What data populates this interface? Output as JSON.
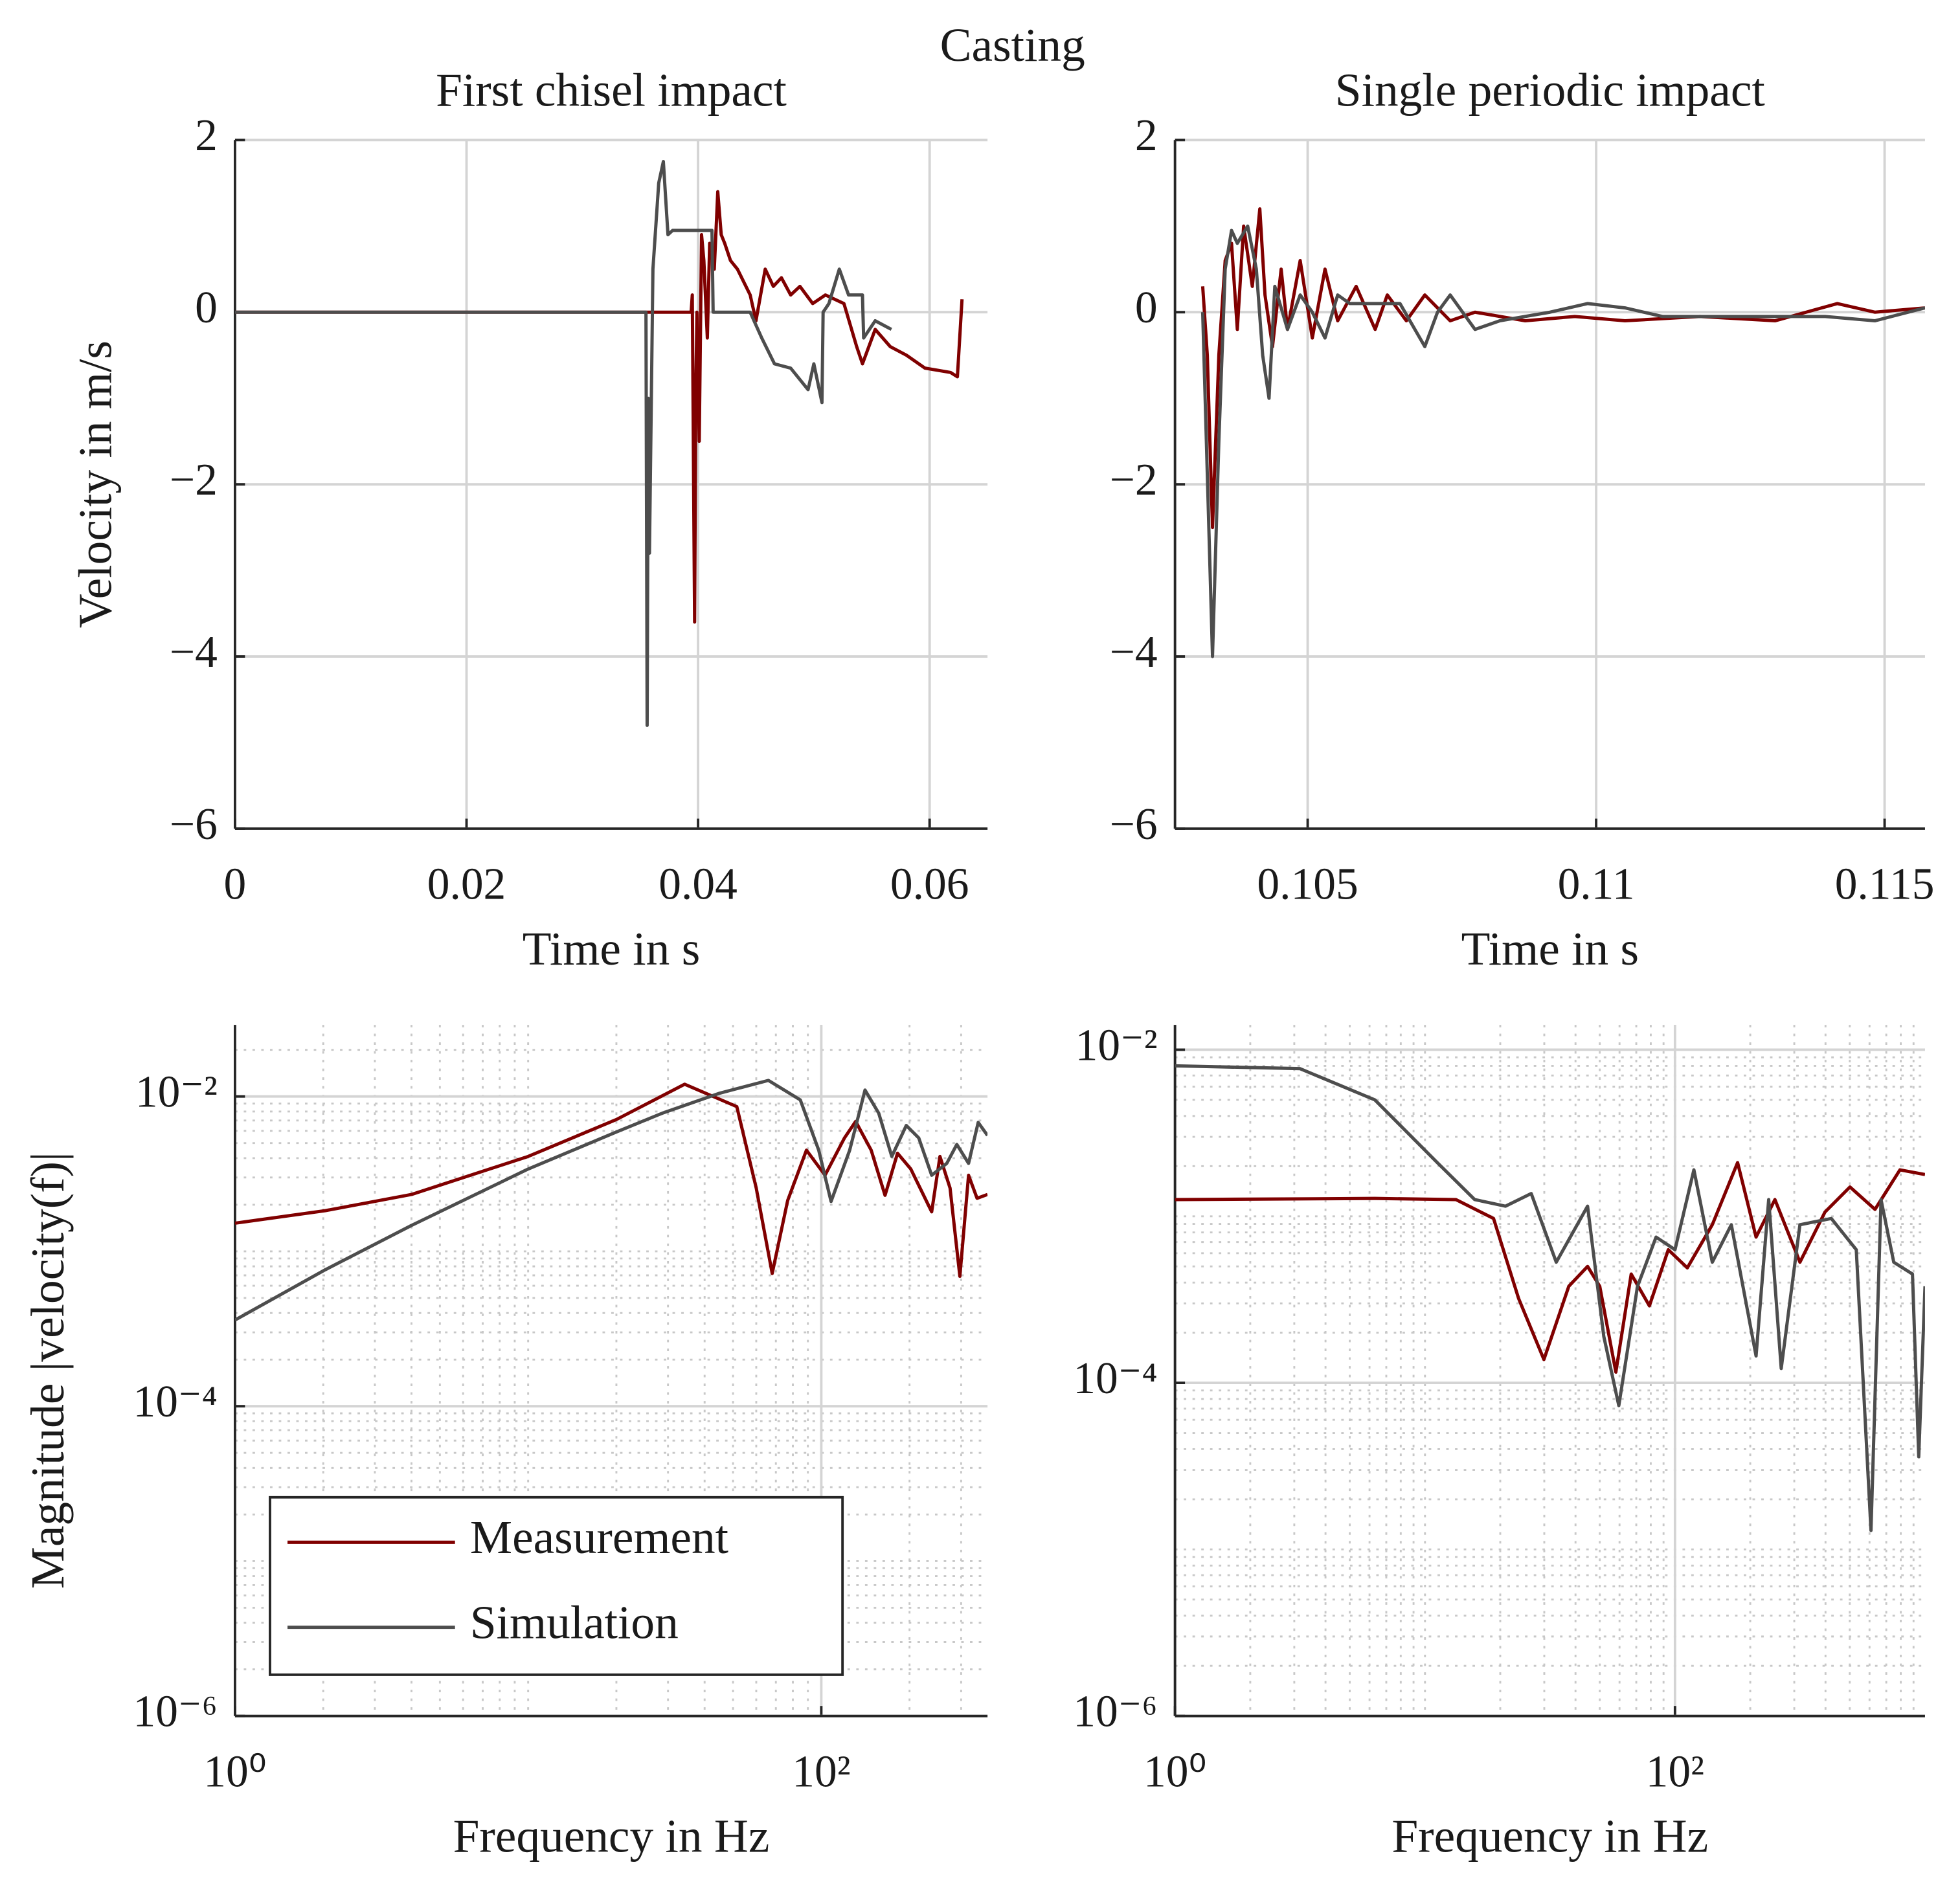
{
  "title": "Casting",
  "chart_data": [
    {
      "type": "line",
      "title": "First chisel impact",
      "xlabel": "Time in s",
      "ylabel": "Velocity in m/s",
      "xlim": [
        0,
        0.065
      ],
      "ylim": [
        -6,
        2
      ],
      "xticks": [
        0,
        0.02,
        0.04,
        0.06
      ],
      "yticks": [
        {
          "value": -6,
          "label": "−6"
        },
        {
          "value": -4,
          "label": "−4"
        },
        {
          "value": -2,
          "label": "−2"
        },
        0,
        2
      ],
      "grid": true,
      "series": [
        {
          "color": "#800000",
          "x": [
            0,
            0.0394,
            0.0395,
            0.0397,
            0.0398,
            0.0399,
            0.0401,
            0.0403,
            0.0405,
            0.0408,
            0.041,
            0.0414,
            0.0417,
            0.042,
            0.0423,
            0.0428,
            0.0434,
            0.0445,
            0.045,
            0.0458,
            0.0465,
            0.0472,
            0.048,
            0.0488,
            0.0499,
            0.051,
            0.0526,
            0.0537,
            0.0542,
            0.0553,
            0.0566,
            0.058,
            0.0596,
            0.0618,
            0.0624,
            0.0628
          ],
          "values": [
            0,
            0,
            0.2,
            -3.6,
            -1.0,
            0,
            -1.5,
            0.9,
            0.6,
            -0.3,
            0.8,
            0.5,
            1.4,
            0.9,
            0.8,
            0.6,
            0.5,
            0.2,
            -0.1,
            0.5,
            0.3,
            0.4,
            0.2,
            0.3,
            0.1,
            0.2,
            0.1,
            -0.4,
            -0.6,
            -0.2,
            -0.4,
            -0.5,
            -0.65,
            -0.7,
            -0.75,
            0.15
          ]
        },
        {
          "color": "#4d4d4d",
          "x": [
            0,
            0.0355,
            0.0356,
            0.0357,
            0.0358,
            0.0361,
            0.0366,
            0.037,
            0.0374,
            0.0378,
            0.0412,
            0.0413,
            0.0445,
            0.0455,
            0.0466,
            0.048,
            0.0495,
            0.05,
            0.0507,
            0.0508,
            0.0513,
            0.0522,
            0.053,
            0.0542,
            0.0543,
            0.0553,
            0.0567
          ],
          "values": [
            0,
            0,
            -4.8,
            -1.0,
            -2.8,
            0.5,
            1.5,
            1.75,
            0.9,
            0.95,
            0.95,
            0,
            0,
            -0.3,
            -0.6,
            -0.65,
            -0.9,
            -0.6,
            -1.05,
            0,
            0.1,
            0.5,
            0.2,
            0.2,
            -0.3,
            -0.1,
            -0.2
          ]
        }
      ]
    },
    {
      "type": "line",
      "title": "Single periodic impact",
      "xlabel": "Time in s",
      "xlim": [
        0.1027,
        0.1157
      ],
      "ylim": [
        -6,
        2
      ],
      "xticks": [
        0.105,
        0.11,
        0.115
      ],
      "yticks": [
        {
          "value": -6,
          "label": "−6"
        },
        {
          "value": -4,
          "label": "−4"
        },
        {
          "value": -2,
          "label": "−2"
        },
        0,
        2
      ],
      "grid": true,
      "series": [
        {
          "color": "#800000",
          "x": [
            0.10318,
            0.10326,
            0.10335,
            0.10346,
            0.10357,
            0.10368,
            0.10378,
            0.10389,
            0.10404,
            0.10417,
            0.10426,
            0.10439,
            0.10454,
            0.10465,
            0.10487,
            0.10508,
            0.1053,
            0.10552,
            0.10584,
            0.10617,
            0.10638,
            0.10671,
            0.10703,
            0.10747,
            0.1079,
            0.10877,
            0.10963,
            0.1105,
            0.1118,
            0.1131,
            0.11418,
            0.11483,
            0.1157
          ],
          "values": [
            0.3,
            -0.5,
            -2.5,
            -0.5,
            0.6,
            0.8,
            -0.2,
            1.0,
            0.3,
            1.2,
            0.2,
            -0.4,
            0.5,
            -0.2,
            0.6,
            -0.3,
            0.5,
            -0.1,
            0.3,
            -0.2,
            0.2,
            -0.1,
            0.2,
            -0.1,
            0,
            -0.1,
            -0.05,
            -0.1,
            -0.05,
            -0.1,
            0.1,
            0,
            0.05
          ]
        },
        {
          "color": "#4d4d4d",
          "x": [
            0.10318,
            0.10335,
            0.10346,
            0.10357,
            0.10368,
            0.10378,
            0.10396,
            0.10411,
            0.10422,
            0.10433,
            0.10443,
            0.10465,
            0.10487,
            0.10508,
            0.1053,
            0.10552,
            0.10573,
            0.10617,
            0.1066,
            0.10703,
            0.10725,
            0.10747,
            0.1079,
            0.10833,
            0.1092,
            0.10985,
            0.1105,
            0.11115,
            0.11267,
            0.11397,
            0.11483,
            0.1157
          ],
          "values": [
            0,
            -4.0,
            -1.5,
            0.5,
            0.95,
            0.8,
            1.0,
            0.5,
            -0.5,
            -1.0,
            0.3,
            -0.2,
            0.2,
            0,
            -0.3,
            0.2,
            0.1,
            0.1,
            0.1,
            -0.4,
            0,
            0.2,
            -0.2,
            -0.1,
            0,
            0.1,
            0.05,
            -0.05,
            -0.05,
            -0.05,
            -0.1,
            0.05
          ]
        }
      ]
    },
    {
      "type": "line",
      "xlabel": "Frequency in Hz",
      "ylabel": "Magnitude |velocity(f)|",
      "xscale": "log",
      "yscale": "log",
      "xlim": [
        1,
        369
      ],
      "ylim": [
        1e-06,
        0.029
      ],
      "xticks": [
        {
          "value": 1,
          "label": "10⁰"
        },
        {
          "value": 100,
          "label": "10²"
        }
      ],
      "yticks": [
        {
          "value": 1e-06,
          "label": "10⁻⁶"
        },
        {
          "value": 0.0001,
          "label": "10⁻⁴"
        },
        {
          "value": 0.01,
          "label": "10⁻²"
        }
      ],
      "grid": true,
      "minor_grid": true,
      "legend": "lower left",
      "series": [
        {
          "name": "Measurement",
          "color": "#800000",
          "x": [
            1,
            2.03,
            4,
            10,
            20,
            34.2,
            51.5,
            60,
            68,
            76.8,
            89,
            103,
            120,
            131,
            148,
            165,
            182,
            202,
            238,
            254,
            275,
            297,
            318,
            340,
            369
          ],
          "values": [
            0.00152,
            0.00183,
            0.00233,
            0.0041,
            0.0071,
            0.012,
            0.0086,
            0.00256,
            0.00072,
            0.00213,
            0.0045,
            0.0031,
            0.0054,
            0.0069,
            0.0045,
            0.0023,
            0.0043,
            0.0034,
            0.0018,
            0.0041,
            0.00256,
            0.00069,
            0.0031,
            0.0022,
            0.00233
          ]
        },
        {
          "name": "Simulation",
          "color": "#4d4d4d",
          "x": [
            1,
            2.03,
            4,
            10,
            20,
            28.7,
            45,
            66,
            84.8,
            98,
            108,
            125,
            141,
            157,
            174,
            195,
            215,
            238,
            268,
            290,
            318,
            343,
            369
          ],
          "values": [
            0.00036,
            0.00076,
            0.00147,
            0.0034,
            0.0059,
            0.0078,
            0.0105,
            0.0127,
            0.0095,
            0.0045,
            0.0021,
            0.0045,
            0.011,
            0.0078,
            0.0041,
            0.0065,
            0.0054,
            0.0031,
            0.0037,
            0.0049,
            0.0037,
            0.0068,
            0.0056
          ]
        }
      ]
    },
    {
      "type": "line",
      "xlabel": "Frequency in Hz",
      "xscale": "log",
      "yscale": "log",
      "xlim": [
        1,
        1000
      ],
      "ylim": [
        1e-06,
        0.0141
      ],
      "xticks": [
        {
          "value": 1,
          "label": "10⁰"
        },
        {
          "value": 100,
          "label": "10²"
        }
      ],
      "yticks": [
        {
          "value": 1e-06,
          "label": "10⁻⁶"
        },
        {
          "value": 0.0001,
          "label": "10⁻⁴"
        },
        {
          "value": 0.01,
          "label": "10⁻²"
        }
      ],
      "grid": true,
      "minor_grid": true,
      "series": [
        {
          "color": "#800000",
          "x": [
            1,
            6.3,
            13.3,
            18.8,
            23.7,
            29.9,
            37.6,
            44.7,
            50,
            58,
            66.8,
            79,
            94,
            112,
            141,
            178,
            211,
            251,
            316,
            398,
            501,
            631,
            794,
            1000
          ],
          "values": [
            0.00126,
            0.00128,
            0.00126,
            0.00097,
            0.00032,
            0.000138,
            0.00038,
            0.0005,
            0.00038,
            0.000116,
            0.00045,
            0.00029,
            0.00063,
            0.00049,
            0.00089,
            0.0021,
            0.00075,
            0.00126,
            0.00053,
            0.00106,
            0.0015,
            0.0011,
            0.0019,
            0.00178
          ]
        },
        {
          "color": "#4d4d4d",
          "x": [
            1,
            3.16,
            6.3,
            11.2,
            15.8,
            21,
            26.6,
            33.5,
            44.7,
            51.9,
            59.6,
            70.8,
            84,
            100,
            119,
            141,
            168,
            211,
            237,
            266,
            316,
            422,
            531,
            608,
            667,
            750,
            891,
            944,
            1000
          ],
          "values": [
            0.008,
            0.0077,
            0.005,
            0.0021,
            0.00126,
            0.00115,
            0.00137,
            0.00053,
            0.00115,
            0.00019,
            7.3e-05,
            0.00038,
            0.00075,
            0.00063,
            0.0019,
            0.00053,
            0.00089,
            0.000145,
            0.00126,
            0.000122,
            0.00089,
            0.00097,
            0.00063,
            1.3e-05,
            0.00126,
            0.00053,
            0.00045,
            3.6e-05,
            0.00038
          ]
        }
      ]
    }
  ]
}
